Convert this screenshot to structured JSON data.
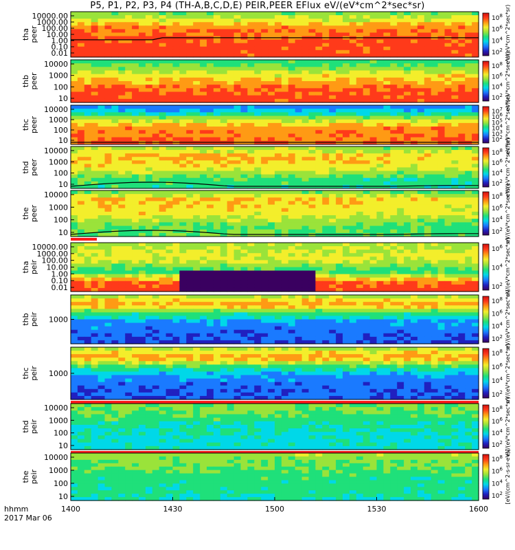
{
  "title": "P5, P1, P2, P3, P4 (TH-A,B,C,D,E) PEIR,PEER EFlux eV/(eV*cm^2*sec*sr)",
  "footer": {
    "time_format_label": "hhmm",
    "date_label": "2017 Mar 06"
  },
  "colors": {
    "frame": "#000000",
    "background": "#ffffff",
    "colormap": [
      "#3a0060",
      "#2020c0",
      "#1a7aff",
      "#00d8e8",
      "#1fe07a",
      "#9ae33a",
      "#f3ee2b",
      "#ff9a14",
      "#ff3a1a",
      "#d01010"
    ]
  },
  "chart_data": [
    {
      "type": "heatmap",
      "panel": "tha peer",
      "ylabel": "tha\npeer",
      "yticks": [
        "10000.00",
        "1000.00",
        "100.00",
        "10.00",
        "1.00",
        "0.10",
        "0.01"
      ],
      "ylim": [
        0.01,
        30000
      ],
      "yscale": "log",
      "colorbar_ticks": [
        "10^8",
        "10^6",
        "10^4",
        "10^2"
      ],
      "colorbar_label": "eV/(eV*cm^2*sec*sr)",
      "scpot_line": true
    },
    {
      "type": "heatmap",
      "panel": "thb peer",
      "ylabel": "thb\npeer",
      "yticks": [
        "10000",
        "1000",
        "100",
        "10"
      ],
      "ylim": [
        5,
        30000
      ],
      "yscale": "log",
      "colorbar_ticks": [
        "10^8",
        "10^6",
        "10^4",
        "10^2"
      ],
      "colorbar_label": "eV/(eV*cm^2*sec*sr)",
      "flag_bar": "none"
    },
    {
      "type": "heatmap",
      "panel": "thc peer",
      "ylabel": "thc\npeer",
      "yticks": [
        "10000",
        "1000",
        "100",
        "10"
      ],
      "ylim": [
        5,
        30000
      ],
      "yscale": "log",
      "colorbar_ticks": [
        "10^7",
        "10^6",
        "10^5",
        "10^4",
        "10^3",
        "10^2"
      ],
      "colorbar_label": "eV/(eV*cm^2*sec*sr)",
      "scpot_line": true
    },
    {
      "type": "heatmap",
      "panel": "thd peer",
      "ylabel": "thd\npeer",
      "yticks": [
        "10000",
        "1000",
        "100",
        "10"
      ],
      "ylim": [
        5,
        30000
      ],
      "yscale": "log",
      "colorbar_ticks": [
        "10^8",
        "10^6",
        "10^4",
        "10^2"
      ],
      "colorbar_label": "eV/(eV*cm^2*sec*sr)",
      "scpot_line": true
    },
    {
      "type": "heatmap",
      "panel": "the peer",
      "ylabel": "the\npeer",
      "yticks": [
        "10000",
        "1000",
        "100",
        "10"
      ],
      "ylim": [
        5,
        30000
      ],
      "yscale": "log",
      "colorbar_ticks": [
        "10^8",
        "10^6",
        "10^4",
        "10^2"
      ],
      "colorbar_label": "eV/(eV*cm^2*sec*sr)",
      "scpot_line": true,
      "flag_bar": "partial"
    },
    {
      "type": "heatmap",
      "panel": "tha peir",
      "ylabel": "tha\npeir",
      "yticks": [
        "10000.00",
        "1000.00",
        "100.00",
        "10.00",
        "1.00",
        "0.10",
        "0.01"
      ],
      "ylim": [
        0.01,
        30000
      ],
      "yscale": "log",
      "colorbar_ticks": [
        "10^6",
        "10^4",
        "10^2"
      ],
      "colorbar_label": "eV/(eV*cm^2*sec*sr)",
      "flag_bar": "none"
    },
    {
      "type": "heatmap",
      "panel": "thb peir",
      "ylabel": "thb\npeir",
      "yticks": [
        "1000"
      ],
      "ylim": [
        300,
        30000
      ],
      "yscale": "log",
      "colorbar_ticks": [
        "10^8",
        "10^6",
        "10^4",
        "10^2"
      ],
      "colorbar_label": "eV/(eV*cm^2*sec*sr)",
      "flag_bar": "none"
    },
    {
      "type": "heatmap",
      "panel": "thc peir",
      "ylabel": "thc\npeir",
      "yticks": [
        "1000"
      ],
      "ylim": [
        300,
        30000
      ],
      "yscale": "log",
      "colorbar_ticks": [
        "10^8",
        "10^6",
        "10^4",
        "10^2"
      ],
      "colorbar_label": "eV/(eV*cm^2*sec*sr)",
      "flag_bar": "full"
    },
    {
      "type": "heatmap",
      "panel": "thd peir",
      "ylabel": "thd\npeir",
      "yticks": [
        "10000",
        "1000",
        "100",
        "10"
      ],
      "ylim": [
        5,
        30000
      ],
      "yscale": "log",
      "colorbar_ticks": [
        "10^8",
        "10^6",
        "10^4",
        "10^2"
      ],
      "colorbar_label": "eV/(eV*cm^2*sec*sr)",
      "flag_bar": "full"
    },
    {
      "type": "heatmap",
      "panel": "the peir",
      "ylabel": "the\npeir",
      "yticks": [
        "10000",
        "1000",
        "100",
        "10"
      ],
      "ylim": [
        5,
        30000
      ],
      "yscale": "log",
      "colorbar_ticks": [
        "10^8",
        "10^6",
        "10^4",
        "10^2"
      ],
      "colorbar_label": "[eV/(cm^2-s-sr-eV)]",
      "flag_bar": "none"
    }
  ],
  "xaxis": {
    "ticks": [
      "1400",
      "1430",
      "1500",
      "1530",
      "1600"
    ],
    "range": [
      "1400",
      "1600"
    ]
  }
}
